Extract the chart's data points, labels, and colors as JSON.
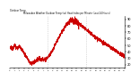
{
  "title": "Milwaukee Weather Outdoor Temp (vs) Heat Index per Minute (Last 24 Hours)",
  "subtitle": "Outdoor Temp",
  "background_color": "#ffffff",
  "plot_bg_color": "#ffffff",
  "line_color": "#cc0000",
  "line_width": 0.5,
  "vline_color": "#bbbbbb",
  "vline_style": "dotted",
  "vline_positions": [
    480,
    960
  ],
  "yticks": [
    20,
    30,
    40,
    50,
    60,
    70,
    80,
    90
  ],
  "ylim": [
    15,
    95
  ],
  "xlim": [
    0,
    1440
  ],
  "xtick_count": 25
}
